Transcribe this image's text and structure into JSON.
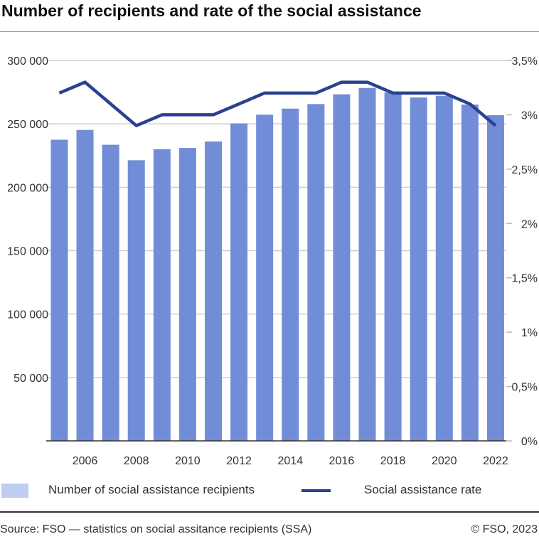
{
  "chart_data": {
    "type": "bar",
    "title": "Number of recipients and rate of the social assistance",
    "categories": [
      "2005",
      "2006",
      "2007",
      "2008",
      "2009",
      "2010",
      "2011",
      "2012",
      "2013",
      "2014",
      "2015",
      "2016",
      "2017",
      "2018",
      "2019",
      "2020",
      "2021",
      "2022"
    ],
    "x_tick_labels": [
      "2006",
      "2008",
      "2010",
      "2012",
      "2014",
      "2016",
      "2018",
      "2020",
      "2022"
    ],
    "series": [
      {
        "name": "Number of social assistance recipients",
        "type": "bar",
        "axis": "left",
        "color": "#728dd8",
        "values": [
          237500,
          245200,
          233500,
          221300,
          230000,
          231000,
          236100,
          250300,
          257200,
          262000,
          265600,
          273300,
          278300,
          274800,
          270800,
          272100,
          265200,
          256800
        ]
      },
      {
        "name": "Social assistance rate",
        "type": "line",
        "axis": "right",
        "color": "#2b4190",
        "values": [
          3.2,
          3.3,
          3.1,
          2.9,
          3.0,
          3.0,
          3.0,
          3.1,
          3.2,
          3.2,
          3.2,
          3.3,
          3.3,
          3.2,
          3.2,
          3.2,
          3.1,
          2.9
        ]
      }
    ],
    "y_left": {
      "min": 0,
      "max": 300000,
      "ticks": [
        50000,
        100000,
        150000,
        200000,
        250000,
        300000
      ],
      "tick_labels": [
        "50 000",
        "100 000",
        "150 000",
        "200 000",
        "250 000",
        "300 000"
      ]
    },
    "y_right": {
      "min": 0,
      "max": 3.5,
      "ticks": [
        0,
        0.5,
        1,
        1.5,
        2,
        2.5,
        3,
        3.5
      ],
      "tick_labels": [
        "0%",
        "0,5%",
        "1%",
        "1,5%",
        "2%",
        "2,5%",
        "3%",
        "3,5%"
      ]
    },
    "grid": true,
    "legend_position": "bottom",
    "legend_swatch_color": "#c0cdf2"
  },
  "footer": {
    "source": "Source: FSO — statistics on social assitance recipients (SSA)",
    "copyright": "© FSO, 2023"
  }
}
